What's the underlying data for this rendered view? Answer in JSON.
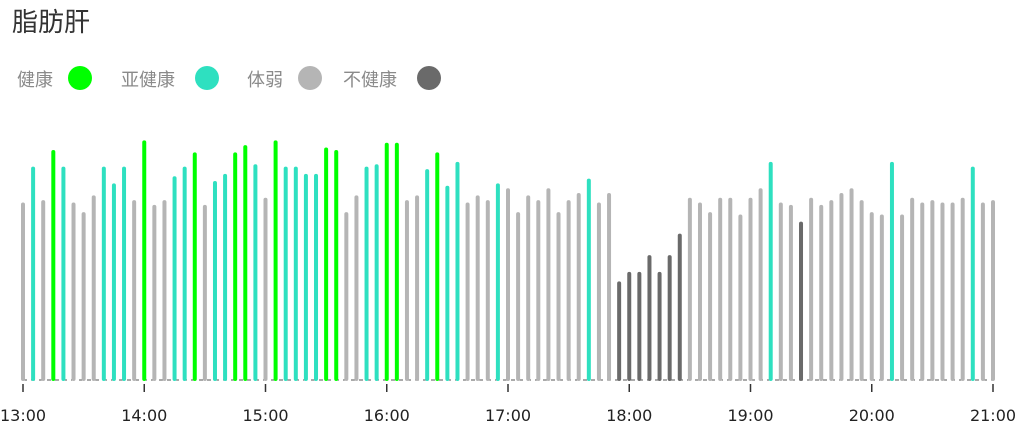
{
  "page_title": "脂肪肝",
  "legend": [
    {
      "label": "健康",
      "color": "#00ff00"
    },
    {
      "label": "亚健康",
      "color": "#2ee0c0"
    },
    {
      "label": "体弱",
      "color": "#b5b5b5"
    },
    {
      "label": "不健康",
      "color": "#6a6a6a"
    }
  ],
  "chart_data": {
    "type": "bar",
    "category_colors": {
      "健康": "#00ff00",
      "亚健康": "#2ee0c0",
      "体弱": "#b5b5b5",
      "不健康": "#6a6a6a"
    },
    "x_ticks": [
      "13:00",
      "14:00",
      "15:00",
      "16:00",
      "17:00",
      "18:00",
      "19:00",
      "20:00",
      "21:00"
    ],
    "x_range_hours": [
      13,
      21
    ],
    "y_range": [
      0,
      100
    ],
    "grid": false,
    "legend_position": "top-left",
    "bars": [
      {
        "t": "13:00",
        "v": 73,
        "c": "体弱"
      },
      {
        "t": "13:05",
        "v": 88,
        "c": "亚健康"
      },
      {
        "t": "13:10",
        "v": 74,
        "c": "体弱"
      },
      {
        "t": "13:15",
        "v": 95,
        "c": "健康"
      },
      {
        "t": "13:20",
        "v": 88,
        "c": "亚健康"
      },
      {
        "t": "13:25",
        "v": 73,
        "c": "体弱"
      },
      {
        "t": "13:30",
        "v": 69,
        "c": "体弱"
      },
      {
        "t": "13:35",
        "v": 76,
        "c": "体弱"
      },
      {
        "t": "13:40",
        "v": 88,
        "c": "亚健康"
      },
      {
        "t": "13:45",
        "v": 81,
        "c": "亚健康"
      },
      {
        "t": "13:50",
        "v": 88,
        "c": "亚健康"
      },
      {
        "t": "13:55",
        "v": 74,
        "c": "体弱"
      },
      {
        "t": "14:00",
        "v": 99,
        "c": "健康"
      },
      {
        "t": "14:05",
        "v": 72,
        "c": "体弱"
      },
      {
        "t": "14:10",
        "v": 74,
        "c": "体弱"
      },
      {
        "t": "14:15",
        "v": 84,
        "c": "亚健康"
      },
      {
        "t": "14:20",
        "v": 88,
        "c": "亚健康"
      },
      {
        "t": "14:25",
        "v": 94,
        "c": "健康"
      },
      {
        "t": "14:30",
        "v": 72,
        "c": "体弱"
      },
      {
        "t": "14:35",
        "v": 82,
        "c": "亚健康"
      },
      {
        "t": "14:40",
        "v": 85,
        "c": "亚健康"
      },
      {
        "t": "14:45",
        "v": 94,
        "c": "健康"
      },
      {
        "t": "14:50",
        "v": 97,
        "c": "健康"
      },
      {
        "t": "14:55",
        "v": 89,
        "c": "亚健康"
      },
      {
        "t": "15:00",
        "v": 75,
        "c": "体弱"
      },
      {
        "t": "15:05",
        "v": 99,
        "c": "健康"
      },
      {
        "t": "15:10",
        "v": 88,
        "c": "亚健康"
      },
      {
        "t": "15:15",
        "v": 88,
        "c": "亚健康"
      },
      {
        "t": "15:20",
        "v": 85,
        "c": "亚健康"
      },
      {
        "t": "15:25",
        "v": 85,
        "c": "亚健康"
      },
      {
        "t": "15:30",
        "v": 96,
        "c": "健康"
      },
      {
        "t": "15:35",
        "v": 95,
        "c": "健康"
      },
      {
        "t": "15:40",
        "v": 69,
        "c": "体弱"
      },
      {
        "t": "15:45",
        "v": 76,
        "c": "体弱"
      },
      {
        "t": "15:50",
        "v": 88,
        "c": "亚健康"
      },
      {
        "t": "15:55",
        "v": 89,
        "c": "亚健康"
      },
      {
        "t": "16:00",
        "v": 98,
        "c": "健康"
      },
      {
        "t": "16:05",
        "v": 98,
        "c": "健康"
      },
      {
        "t": "16:10",
        "v": 74,
        "c": "体弱"
      },
      {
        "t": "16:15",
        "v": 76,
        "c": "体弱"
      },
      {
        "t": "16:20",
        "v": 87,
        "c": "亚健康"
      },
      {
        "t": "16:25",
        "v": 94,
        "c": "健康"
      },
      {
        "t": "16:30",
        "v": 80,
        "c": "亚健康"
      },
      {
        "t": "16:35",
        "v": 90,
        "c": "亚健康"
      },
      {
        "t": "16:40",
        "v": 73,
        "c": "体弱"
      },
      {
        "t": "16:45",
        "v": 76,
        "c": "体弱"
      },
      {
        "t": "16:50",
        "v": 74,
        "c": "体弱"
      },
      {
        "t": "16:55",
        "v": 81,
        "c": "亚健康"
      },
      {
        "t": "17:00",
        "v": 79,
        "c": "体弱"
      },
      {
        "t": "17:05",
        "v": 69,
        "c": "体弱"
      },
      {
        "t": "17:10",
        "v": 76,
        "c": "体弱"
      },
      {
        "t": "17:15",
        "v": 74,
        "c": "体弱"
      },
      {
        "t": "17:20",
        "v": 79,
        "c": "体弱"
      },
      {
        "t": "17:25",
        "v": 69,
        "c": "体弱"
      },
      {
        "t": "17:30",
        "v": 74,
        "c": "体弱"
      },
      {
        "t": "17:35",
        "v": 77,
        "c": "体弱"
      },
      {
        "t": "17:40",
        "v": 83,
        "c": "亚健康"
      },
      {
        "t": "17:45",
        "v": 73,
        "c": "体弱"
      },
      {
        "t": "17:50",
        "v": 77,
        "c": "体弱"
      },
      {
        "t": "17:55",
        "v": 40,
        "c": "不健康"
      },
      {
        "t": "18:00",
        "v": 44,
        "c": "不健康"
      },
      {
        "t": "18:05",
        "v": 44,
        "c": "不健康"
      },
      {
        "t": "18:10",
        "v": 51,
        "c": "不健康"
      },
      {
        "t": "18:15",
        "v": 44,
        "c": "不健康"
      },
      {
        "t": "18:20",
        "v": 51,
        "c": "不健康"
      },
      {
        "t": "18:25",
        "v": 60,
        "c": "不健康"
      },
      {
        "t": "18:30",
        "v": 75,
        "c": "体弱"
      },
      {
        "t": "18:35",
        "v": 73,
        "c": "体弱"
      },
      {
        "t": "18:40",
        "v": 69,
        "c": "体弱"
      },
      {
        "t": "18:45",
        "v": 75,
        "c": "体弱"
      },
      {
        "t": "18:50",
        "v": 75,
        "c": "体弱"
      },
      {
        "t": "18:55",
        "v": 68,
        "c": "体弱"
      },
      {
        "t": "19:00",
        "v": 75,
        "c": "体弱"
      },
      {
        "t": "19:05",
        "v": 79,
        "c": "体弱"
      },
      {
        "t": "19:10",
        "v": 90,
        "c": "亚健康"
      },
      {
        "t": "19:15",
        "v": 73,
        "c": "体弱"
      },
      {
        "t": "19:20",
        "v": 72,
        "c": "体弱"
      },
      {
        "t": "19:25",
        "v": 65,
        "c": "不健康"
      },
      {
        "t": "19:30",
        "v": 75,
        "c": "体弱"
      },
      {
        "t": "19:35",
        "v": 72,
        "c": "体弱"
      },
      {
        "t": "19:40",
        "v": 74,
        "c": "体弱"
      },
      {
        "t": "19:45",
        "v": 77,
        "c": "体弱"
      },
      {
        "t": "19:50",
        "v": 79,
        "c": "体弱"
      },
      {
        "t": "19:55",
        "v": 74,
        "c": "体弱"
      },
      {
        "t": "20:00",
        "v": 69,
        "c": "体弱"
      },
      {
        "t": "20:05",
        "v": 68,
        "c": "体弱"
      },
      {
        "t": "20:10",
        "v": 90,
        "c": "亚健康"
      },
      {
        "t": "20:15",
        "v": 68,
        "c": "体弱"
      },
      {
        "t": "20:20",
        "v": 75,
        "c": "体弱"
      },
      {
        "t": "20:25",
        "v": 73,
        "c": "体弱"
      },
      {
        "t": "20:30",
        "v": 74,
        "c": "体弱"
      },
      {
        "t": "20:35",
        "v": 73,
        "c": "体弱"
      },
      {
        "t": "20:40",
        "v": 73,
        "c": "体弱"
      },
      {
        "t": "20:45",
        "v": 75,
        "c": "体弱"
      },
      {
        "t": "20:50",
        "v": 88,
        "c": "亚健康"
      },
      {
        "t": "20:55",
        "v": 73,
        "c": "体弱"
      },
      {
        "t": "21:00",
        "v": 74,
        "c": "体弱"
      }
    ]
  }
}
